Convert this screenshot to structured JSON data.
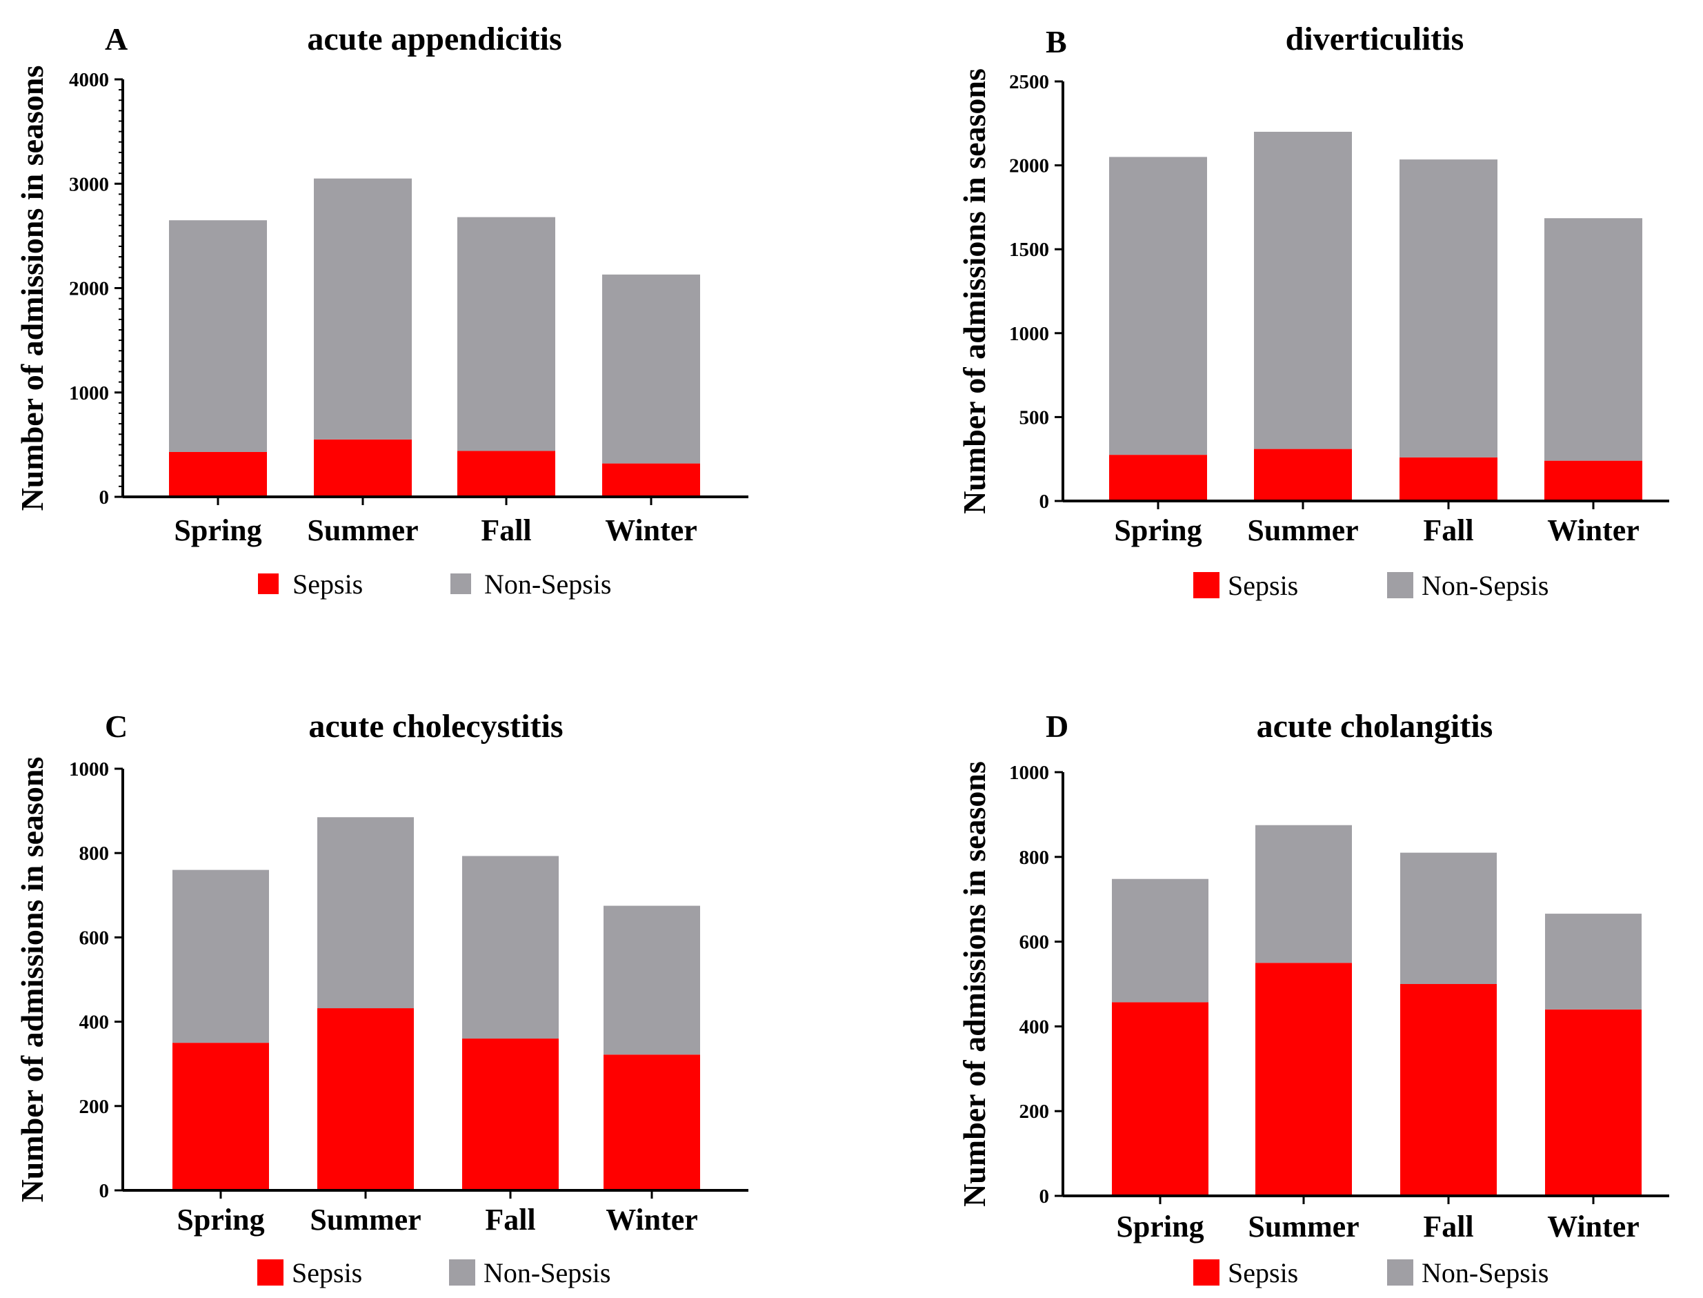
{
  "colors": {
    "sepsis": "#ff0000",
    "non_sepsis": "#a09fa4"
  },
  "chart_data": [
    {
      "type": "bar",
      "stacked": true,
      "panel": "A",
      "title": "acute appendicitis",
      "xlabel": "",
      "ylabel": "Number of admissions in seasons",
      "categories": [
        "Spring",
        "Summer",
        "Fall",
        "Winter"
      ],
      "ylim": [
        0,
        4000
      ],
      "yticks": [
        0,
        1000,
        2000,
        3000,
        4000
      ],
      "minor_ticks": true,
      "series": [
        {
          "name": "Sepsis",
          "values": [
            430,
            550,
            440,
            320
          ]
        },
        {
          "name": "Non-Sepsis",
          "values": [
            2220,
            2500,
            2240,
            1810
          ]
        }
      ],
      "legend": {
        "placement": "bottom",
        "labels": [
          "Sepsis",
          "Non-Sepsis"
        ]
      }
    },
    {
      "type": "bar",
      "stacked": true,
      "panel": "B",
      "title": "diverticulitis",
      "xlabel": "",
      "ylabel": "Number of admissions in seasons",
      "categories": [
        "Spring",
        "Summer",
        "Fall",
        "Winter"
      ],
      "ylim": [
        0,
        2500
      ],
      "yticks": [
        0,
        500,
        1000,
        1500,
        2000,
        2500
      ],
      "minor_ticks": false,
      "series": [
        {
          "name": "Sepsis",
          "values": [
            275,
            310,
            260,
            240
          ]
        },
        {
          "name": "Non-Sepsis",
          "values": [
            1775,
            1890,
            1775,
            1445
          ]
        }
      ],
      "legend": {
        "placement": "bottom",
        "labels": [
          "Sepsis",
          "Non-Sepsis"
        ]
      }
    },
    {
      "type": "bar",
      "stacked": true,
      "panel": "C",
      "title": "acute cholecystitis",
      "xlabel": "",
      "ylabel": "Number of admissions in seasons",
      "categories": [
        "Spring",
        "Summer",
        "Fall",
        "Winter"
      ],
      "ylim": [
        0,
        1000
      ],
      "yticks": [
        0,
        200,
        400,
        600,
        800,
        1000
      ],
      "minor_ticks": false,
      "series": [
        {
          "name": "Sepsis",
          "values": [
            350,
            432,
            360,
            322
          ]
        },
        {
          "name": "Non-Sepsis",
          "values": [
            410,
            453,
            433,
            353
          ]
        }
      ],
      "legend": {
        "placement": "bottom",
        "labels": [
          "Sepsis",
          "Non-Sepsis"
        ]
      }
    },
    {
      "type": "bar",
      "stacked": true,
      "panel": "D",
      "title": "acute cholangitis",
      "xlabel": "",
      "ylabel": "Number of admissions in seasons",
      "categories": [
        "Spring",
        "Summer",
        "Fall",
        "Winter"
      ],
      "ylim": [
        0,
        1000
      ],
      "yticks": [
        0,
        200,
        400,
        600,
        800,
        1000
      ],
      "minor_ticks": false,
      "series": [
        {
          "name": "Sepsis",
          "values": [
            457,
            550,
            500,
            440
          ]
        },
        {
          "name": "Non-Sepsis",
          "values": [
            291,
            325,
            310,
            226
          ]
        }
      ],
      "legend": {
        "placement": "bottom",
        "labels": [
          "Sepsis",
          "Non-Sepsis"
        ]
      }
    }
  ]
}
